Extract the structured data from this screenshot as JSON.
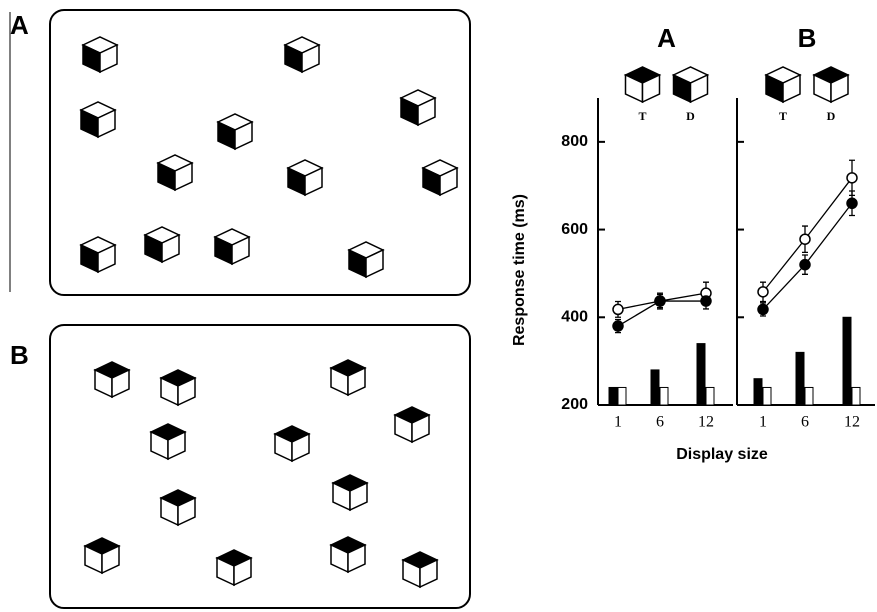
{
  "stimuli": [
    {
      "label": "A"
    },
    {
      "label": "B"
    }
  ],
  "chart_data": {
    "type": "line",
    "ylabel": "Response time (ms)",
    "xlabel": "Display size",
    "ylim": [
      200,
      900
    ],
    "yticks": [
      200,
      400,
      600,
      800
    ],
    "panels": [
      {
        "title": "A",
        "legend": [
          "T",
          "D"
        ],
        "categories": [
          "1",
          "6",
          "12"
        ],
        "series": [
          {
            "color": "#ffffff",
            "values": [
              418,
              437,
              455
            ],
            "errors": [
              18,
              18,
              25
            ]
          },
          {
            "color": "#000000",
            "values": [
              380,
              437,
              437
            ],
            "errors": [
              15,
              15,
              18
            ]
          }
        ],
        "bars": [
          {
            "color": "#000000",
            "values": [
              240,
              280,
              340
            ]
          },
          {
            "color": "#ffffff",
            "values": [
              240,
              240,
              240
            ]
          }
        ]
      },
      {
        "title": "B",
        "legend": [
          "T",
          "D"
        ],
        "categories": [
          "1",
          "6",
          "12"
        ],
        "series": [
          {
            "color": "#ffffff",
            "values": [
              458,
              578,
              718
            ],
            "errors": [
              22,
              30,
              40
            ]
          },
          {
            "color": "#000000",
            "values": [
              418,
              520,
              660
            ],
            "errors": [
              15,
              22,
              28
            ]
          }
        ],
        "bars": [
          {
            "color": "#000000",
            "values": [
              260,
              320,
              400
            ]
          },
          {
            "color": "#ffffff",
            "values": [
              240,
              240,
              240
            ]
          }
        ]
      }
    ]
  }
}
